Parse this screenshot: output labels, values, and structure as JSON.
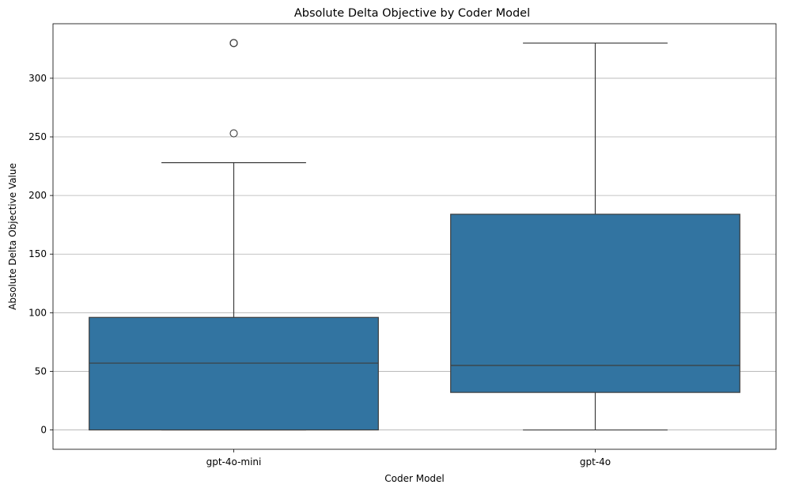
{
  "chart_data": {
    "type": "box",
    "title": "Absolute Delta Objective by Coder Model",
    "xlabel": "Coder Model",
    "ylabel": "Absolute Delta Objective Value",
    "ylim": [
      -16.5,
      346.5
    ],
    "yticks": [
      0,
      50,
      100,
      150,
      200,
      250,
      300
    ],
    "grid": "y",
    "categories": [
      "gpt-4o-mini",
      "gpt-4o"
    ],
    "boxes": [
      {
        "category": "gpt-4o-mini",
        "whisker_low": 0,
        "q1": 0,
        "median": 57,
        "q3": 96,
        "whisker_high": 228,
        "outliers": [
          253,
          330,
          330,
          330
        ]
      },
      {
        "category": "gpt-4o",
        "whisker_low": 0,
        "q1": 32,
        "median": 55,
        "q3": 184,
        "whisker_high": 330,
        "outliers": []
      }
    ],
    "colors": {
      "box_fill": "#3274a1",
      "line": "#3d3d3d",
      "grid": "#b0b0b0"
    }
  }
}
